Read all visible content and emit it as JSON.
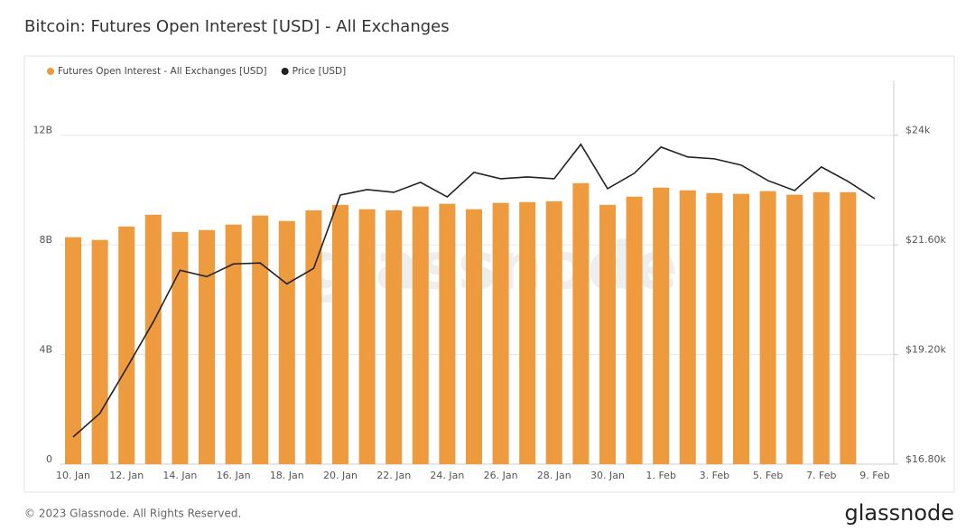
{
  "chart_data": {
    "type": "bar",
    "title": "Bitcoin: Futures Open Interest [USD] - All Exchanges",
    "watermark": "glassnode",
    "categories": [
      "10. Jan",
      null,
      "12. Jan",
      null,
      "14. Jan",
      null,
      "16. Jan",
      null,
      "18. Jan",
      null,
      "20. Jan",
      null,
      "22. Jan",
      null,
      "24. Jan",
      null,
      "26. Jan",
      null,
      "28. Jan",
      null,
      "30. Jan",
      null,
      "1. Feb",
      null,
      "3. Feb",
      null,
      "5. Feb",
      null,
      "7. Feb",
      null,
      "9. Feb"
    ],
    "series": [
      {
        "name": "Futures Open Interest - All Exchanges [USD]",
        "type": "bar",
        "color": "#ee9a3f",
        "values": [
          8280000000,
          8180000000,
          8670000000,
          9100000000,
          8470000000,
          8540000000,
          8740000000,
          9070000000,
          8870000000,
          9260000000,
          9460000000,
          9300000000,
          9260000000,
          9400000000,
          9500000000,
          9300000000,
          9530000000,
          9560000000,
          9590000000,
          10250000000,
          9460000000,
          9760000000,
          10090000000,
          9990000000,
          9890000000,
          9860000000,
          9960000000,
          9830000000,
          9920000000,
          9920000000,
          null
        ]
      },
      {
        "name": "Price [USD]",
        "type": "line",
        "axis": "y2",
        "color": "#222222",
        "values": [
          17395,
          17911,
          18900,
          19914,
          21044,
          20905,
          21183,
          21203,
          20746,
          21084,
          22690,
          22809,
          22750,
          22968,
          22650,
          23186,
          23047,
          23087,
          23047,
          23800,
          22829,
          23166,
          23741,
          23523,
          23483,
          23345,
          23007,
          22789,
          23305,
          22987,
          22611
        ]
      }
    ],
    "ylim": [
      0,
      14000000000
    ],
    "yticks": [
      0,
      {
        "value": 4000000000,
        "label": "4B"
      },
      {
        "value": 8000000000,
        "label": "8B"
      },
      {
        "value": 12000000000,
        "label": "12B"
      }
    ],
    "y2lim": [
      16800,
      25200
    ],
    "y2ticks": [
      {
        "value": 16800,
        "label": "$16.80k"
      },
      {
        "value": 19200,
        "label": "$19.20k"
      },
      {
        "value": 21600,
        "label": "$21.60k"
      },
      {
        "value": 24000,
        "label": "$24k"
      }
    ],
    "grid": true,
    "legend": "top-left"
  },
  "footer": {
    "copyright": "© 2023 Glassnode. All Rights Reserved.",
    "logo": "glassnode"
  }
}
